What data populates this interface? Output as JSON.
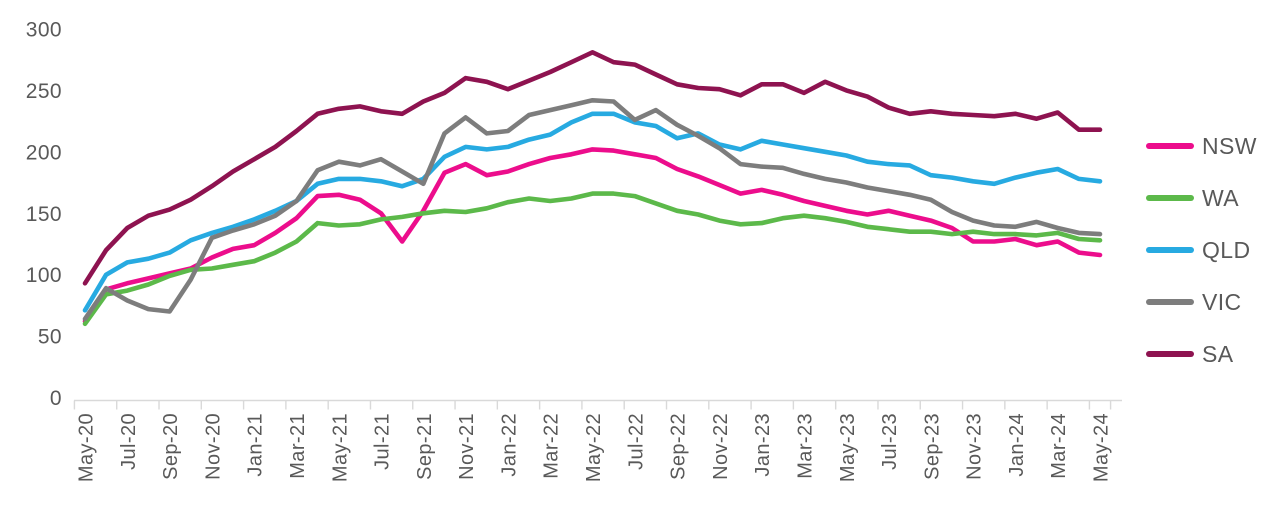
{
  "axis_style": {
    "line_color": "#D9D9D9",
    "label_color": "#595959"
  },
  "chart_data": {
    "type": "line",
    "title": "",
    "xlabel": "",
    "ylabel": "",
    "ylim": [
      0,
      300
    ],
    "yticks": [
      0,
      50,
      100,
      150,
      200,
      250,
      300
    ],
    "grid": false,
    "legend_position": "right",
    "x_tick_labels": [
      "May-20",
      "Jul-20",
      "Sep-20",
      "Nov-20",
      "Jan-21",
      "Mar-21",
      "May-21",
      "Jul-21",
      "Sep-21",
      "Nov-21",
      "Jan-22",
      "Mar-22",
      "May-22",
      "Jul-22",
      "Sep-22",
      "Nov-22",
      "Jan-23",
      "Mar-23",
      "May-23",
      "Jul-23",
      "Sep-23",
      "Nov-23",
      "Jan-24",
      "Mar-24",
      "May-24"
    ],
    "categories": [
      "May-20",
      "Jun-20",
      "Jul-20",
      "Aug-20",
      "Sep-20",
      "Oct-20",
      "Nov-20",
      "Dec-20",
      "Jan-21",
      "Feb-21",
      "Mar-21",
      "Apr-21",
      "May-21",
      "Jun-21",
      "Jul-21",
      "Aug-21",
      "Sep-21",
      "Oct-21",
      "Nov-21",
      "Dec-21",
      "Jan-22",
      "Feb-22",
      "Mar-22",
      "Apr-22",
      "May-22",
      "Jun-22",
      "Jul-22",
      "Aug-22",
      "Sep-22",
      "Oct-22",
      "Nov-22",
      "Dec-22",
      "Jan-23",
      "Feb-23",
      "Mar-23",
      "Apr-23",
      "May-23",
      "Jun-23",
      "Jul-23",
      "Aug-23",
      "Sep-23",
      "Oct-23",
      "Nov-23",
      "Dec-23",
      "Jan-24",
      "Feb-24",
      "Mar-24",
      "Apr-24",
      "May-24"
    ],
    "series": [
      {
        "name": "NSW",
        "color": "#EC0D8C",
        "values": [
          62,
          88,
          93,
          97,
          101,
          105,
          114,
          121,
          124,
          134,
          146,
          164,
          165,
          161,
          150,
          127,
          152,
          183,
          190,
          181,
          184,
          190,
          195,
          198,
          202,
          201,
          198,
          195,
          186,
          180,
          173,
          166,
          169,
          165,
          160,
          156,
          152,
          149,
          152,
          148,
          144,
          138,
          127,
          127,
          129,
          124,
          127,
          118,
          116
        ]
      },
      {
        "name": "WA",
        "color": "#5CB94A",
        "values": [
          60,
          84,
          87,
          92,
          99,
          104,
          105,
          108,
          111,
          118,
          127,
          142,
          140,
          141,
          145,
          147,
          150,
          152,
          151,
          154,
          159,
          162,
          160,
          162,
          166,
          166,
          164,
          158,
          152,
          149,
          144,
          141,
          142,
          146,
          148,
          146,
          143,
          139,
          137,
          135,
          135,
          133,
          135,
          133,
          133,
          132,
          134,
          129,
          128
        ]
      },
      {
        "name": "QLD",
        "color": "#27AAE1",
        "values": [
          71,
          100,
          110,
          113,
          118,
          128,
          134,
          139,
          145,
          152,
          160,
          174,
          178,
          178,
          176,
          172,
          178,
          196,
          204,
          202,
          204,
          210,
          214,
          224,
          231,
          231,
          224,
          221,
          211,
          215,
          206,
          202,
          209,
          206,
          203,
          200,
          197,
          192,
          190,
          189,
          181,
          179,
          176,
          174,
          179,
          183,
          186,
          178,
          176
        ]
      },
      {
        "name": "VIC",
        "color": "#7D7D7D",
        "values": [
          64,
          89,
          79,
          72,
          70,
          96,
          130,
          136,
          141,
          148,
          160,
          185,
          192,
          189,
          194,
          184,
          174,
          215,
          228,
          215,
          217,
          230,
          234,
          238,
          242,
          241,
          226,
          234,
          222,
          213,
          203,
          190,
          188,
          187,
          182,
          178,
          175,
          171,
          168,
          165,
          161,
          151,
          144,
          140,
          139,
          143,
          138,
          134,
          133
        ]
      },
      {
        "name": "SA",
        "color": "#8E1350",
        "values": [
          93,
          120,
          138,
          148,
          153,
          161,
          172,
          184,
          194,
          204,
          217,
          231,
          235,
          237,
          233,
          231,
          241,
          248,
          260,
          257,
          251,
          258,
          265,
          273,
          281,
          273,
          271,
          263,
          255,
          252,
          251,
          246,
          255,
          255,
          248,
          257,
          250,
          245,
          236,
          231,
          233,
          231,
          230,
          229,
          231,
          227,
          232,
          218,
          218
        ]
      }
    ]
  }
}
